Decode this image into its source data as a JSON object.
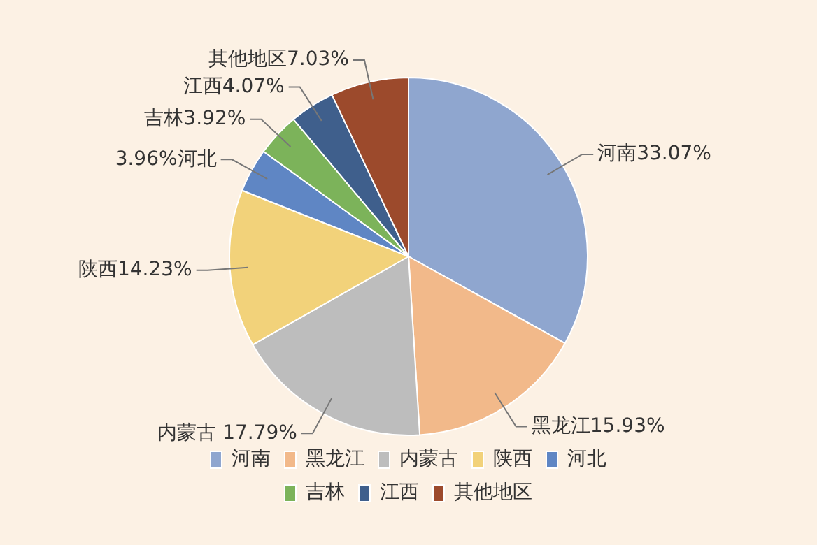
{
  "chart_data": {
    "type": "pie",
    "categories": [
      "河南",
      "黑龙江",
      "内蒙古",
      "陕西",
      "河北",
      "吉林",
      "江西",
      "其他地区"
    ],
    "values": [
      33.07,
      15.93,
      17.79,
      14.23,
      3.96,
      3.92,
      4.07,
      7.03
    ],
    "colors": [
      "#8fa6cf",
      "#f2b98a",
      "#bdbdbd",
      "#f2d27a",
      "#5f86c4",
      "#7cb35a",
      "#3f5f8c",
      "#9c4a2c"
    ],
    "value_labels": [
      "河南33.07%",
      "黑龙江15.93%",
      "内蒙古 17.79%",
      "陕西14.23%",
      "3.96%河北",
      "吉林3.92%",
      "江西4.07%",
      "其他地区7.03%"
    ],
    "legend": "bottom"
  }
}
